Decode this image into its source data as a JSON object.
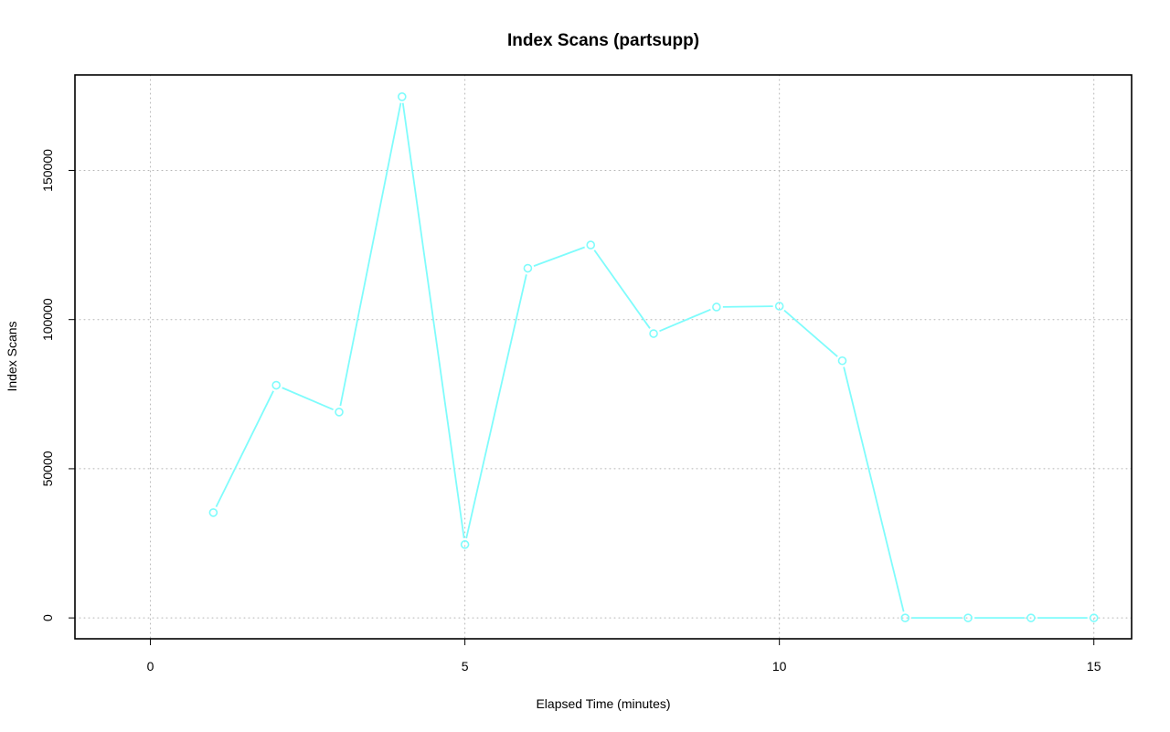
{
  "chart_data": {
    "type": "line",
    "title": "Index Scans (partsupp)",
    "xlabel": "Elapsed Time (minutes)",
    "ylabel": "Index Scans",
    "xlim": [
      -1.2,
      15.6
    ],
    "ylim": [
      -7000,
      182000
    ],
    "x_ticks": [
      0,
      5,
      10,
      15
    ],
    "x_tick_labels": [
      "0",
      "5",
      "10",
      "15"
    ],
    "y_ticks": [
      0,
      50000,
      100000,
      150000
    ],
    "y_tick_labels": [
      "0",
      "50000",
      "100000",
      "150000"
    ],
    "grid": true,
    "legend": "none",
    "series_color": "#7ffcfc",
    "series": [
      {
        "x": [
          1,
          2,
          3,
          4,
          5,
          6,
          7,
          8,
          9,
          10,
          11,
          12,
          13,
          14,
          15
        ],
        "values": [
          35300,
          78000,
          69000,
          174700,
          24600,
          117200,
          125000,
          95300,
          104200,
          104500,
          86200,
          0,
          0,
          0,
          0
        ]
      }
    ]
  }
}
